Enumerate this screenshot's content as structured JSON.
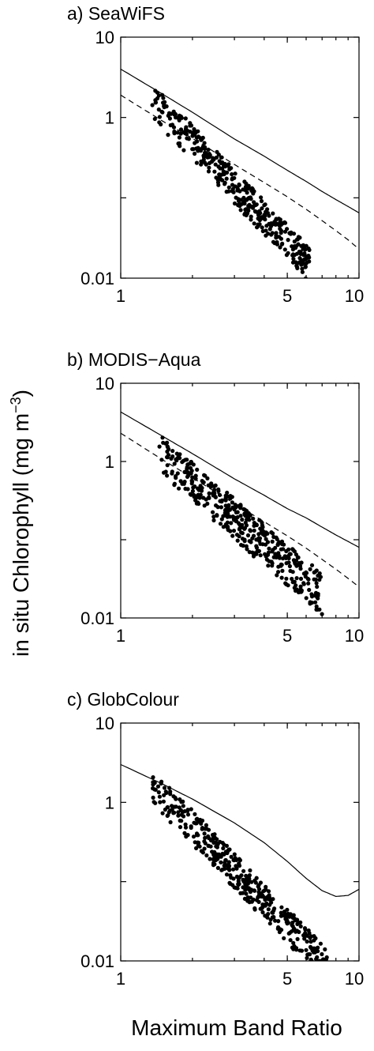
{
  "figure": {
    "ylabel": "in situ Chlorophyll (mg m",
    "ylabel_sup": "−3",
    "ylabel_close": ")",
    "xlabel": "Maximum Band Ratio"
  },
  "chart_data": [
    {
      "type": "scatter",
      "title": "a) SeaWiFS",
      "x_scale": "log",
      "y_scale": "log",
      "xlim": [
        1,
        10
      ],
      "ylim": [
        0.01,
        10
      ],
      "x_ticks": [
        1,
        5,
        10
      ],
      "x_tick_labels": [
        "1",
        "5",
        "10"
      ],
      "y_ticks": [
        0.01,
        1,
        10
      ],
      "y_tick_labels": [
        "0.01",
        "1",
        "10"
      ],
      "grid": false,
      "point_cloud": {
        "count": 380,
        "seed": 11,
        "x_range": [
          1.35,
          6.2
        ],
        "upper_chl_at_x1": 7.0,
        "upper_log_slope": -3.1,
        "lower_chl_at_x1": 2.4,
        "lower_log_slope": -3.1,
        "x_center": 3.4,
        "x_spread": 0.65
      },
      "series": [
        {
          "style": "solid",
          "x": [
            1,
            1.5,
            2,
            3,
            4,
            5,
            6,
            7,
            8,
            9,
            10
          ],
          "y": [
            4.0,
            1.95,
            1.16,
            0.54,
            0.33,
            0.22,
            0.16,
            0.12,
            0.095,
            0.078,
            0.065
          ]
        },
        {
          "style": "dashed",
          "x": [
            1,
            1.5,
            2,
            3,
            4,
            5,
            6,
            7,
            8,
            9,
            10
          ],
          "y": [
            1.9,
            0.9,
            0.55,
            0.26,
            0.155,
            0.103,
            0.072,
            0.052,
            0.039,
            0.03,
            0.023
          ]
        }
      ]
    },
    {
      "type": "scatter",
      "title": "b) MODIS−Aqua",
      "x_scale": "log",
      "y_scale": "log",
      "xlim": [
        1,
        10
      ],
      "ylim": [
        0.01,
        10
      ],
      "x_ticks": [
        1,
        5,
        10
      ],
      "x_tick_labels": [
        "1",
        "5",
        "10"
      ],
      "y_ticks": [
        0.01,
        1,
        10
      ],
      "y_tick_labels": [
        "0.01",
        "1",
        "10"
      ],
      "grid": false,
      "point_cloud": {
        "count": 420,
        "seed": 23,
        "x_range": [
          1.45,
          7.0
        ],
        "upper_chl_at_x1": 6.0,
        "upper_log_slope": -2.6,
        "lower_chl_at_x1": 1.9,
        "lower_log_slope": -2.7,
        "x_center": 3.5,
        "x_spread": 0.7
      },
      "series": [
        {
          "style": "solid",
          "x": [
            1,
            1.5,
            2,
            3,
            4,
            5,
            6,
            7,
            8,
            9,
            10
          ],
          "y": [
            4.3,
            2.1,
            1.26,
            0.6,
            0.37,
            0.25,
            0.19,
            0.145,
            0.115,
            0.095,
            0.08
          ]
        },
        {
          "style": "dashed",
          "x": [
            1,
            1.5,
            2,
            3,
            4,
            5,
            6,
            7,
            8,
            9,
            10
          ],
          "y": [
            2.3,
            1.05,
            0.62,
            0.29,
            0.17,
            0.112,
            0.078,
            0.056,
            0.042,
            0.032,
            0.025
          ]
        }
      ]
    },
    {
      "type": "scatter",
      "title": "c) GlobColour",
      "x_scale": "log",
      "y_scale": "log",
      "xlim": [
        1,
        10
      ],
      "ylim": [
        0.01,
        10
      ],
      "x_ticks": [
        1,
        5,
        10
      ],
      "x_tick_labels": [
        "1",
        "5",
        "10"
      ],
      "y_ticks": [
        0.01,
        1,
        10
      ],
      "y_tick_labels": [
        "0.01",
        "1",
        "10"
      ],
      "grid": false,
      "point_cloud": {
        "count": 420,
        "seed": 37,
        "x_range": [
          1.35,
          7.4
        ],
        "upper_chl_at_x1": 7.0,
        "upper_log_slope": -3.1,
        "lower_chl_at_x1": 2.4,
        "lower_log_slope": -3.1,
        "x_center": 3.5,
        "x_spread": 0.65
      },
      "series": [
        {
          "style": "solid",
          "x": [
            1,
            1.5,
            2,
            3,
            4,
            5,
            6,
            7,
            8,
            9,
            10
          ],
          "y": [
            3.0,
            1.7,
            1.1,
            0.55,
            0.31,
            0.18,
            0.11,
            0.077,
            0.065,
            0.067,
            0.08
          ]
        }
      ]
    }
  ]
}
